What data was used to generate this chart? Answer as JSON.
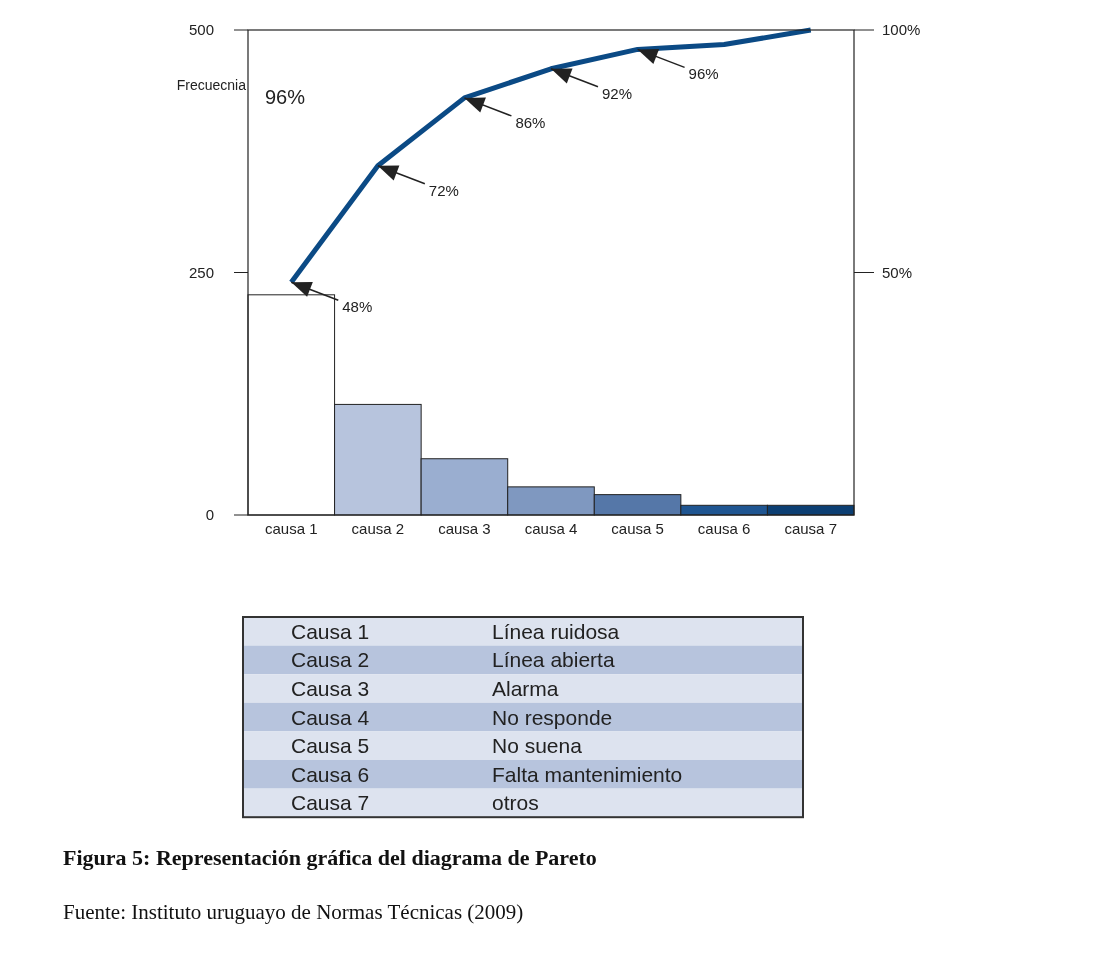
{
  "chart_data": {
    "type": "bar",
    "title": "Figura 5: Representación gráfica del diagrama de Pareto",
    "ylabel": "Frecuecnia",
    "categories": [
      "causa 1",
      "causa 2",
      "causa 3",
      "causa 4",
      "causa 5",
      "causa 6",
      "causa 7"
    ],
    "series": [
      {
        "colors": [
          "#ffffff",
          "#b7c4dd",
          "#9aaed0",
          "#7f98c0",
          "#5577a8",
          "#1f5591",
          "#0c3f73"
        ],
        "values": [
          227,
          114,
          58,
          29,
          21,
          10,
          10
        ]
      },
      {
        "type": "line",
        "axis": "y2",
        "color": "#0b4a85",
        "values": [
          48,
          72,
          86,
          92,
          96,
          97,
          100
        ]
      }
    ],
    "ylim": [
      0,
      500
    ],
    "yticks": [
      0,
      250,
      500
    ],
    "y2lim": [
      0,
      100
    ],
    "y2ticks": [
      {
        "value": 50,
        "label": "50%"
      },
      {
        "value": 100,
        "label": "100%"
      }
    ],
    "annotations": [
      {
        "text": "48%",
        "x": "causa 1",
        "y": 240
      },
      {
        "text": "72%",
        "x": "causa 2",
        "y": 360
      },
      {
        "text": "86%",
        "x": "causa 3",
        "y": 430
      },
      {
        "text": "92%",
        "x": "causa 4",
        "y": 460
      },
      {
        "text": "96%",
        "x": "causa 5",
        "y": 480
      },
      "96%",
      "Causa 1",
      "Línea ruidosa",
      "Causa 2",
      "Línea abierta",
      "Causa 3",
      "Alarma",
      "Causa 4",
      "No responde",
      "Causa 5",
      "No suena",
      "Causa 6",
      "Falta mantenimiento",
      "Causa 7",
      "otros",
      "Fuente: Instituto uruguayo de Normas Técnicas (2009)"
    ],
    "grid": false
  }
}
